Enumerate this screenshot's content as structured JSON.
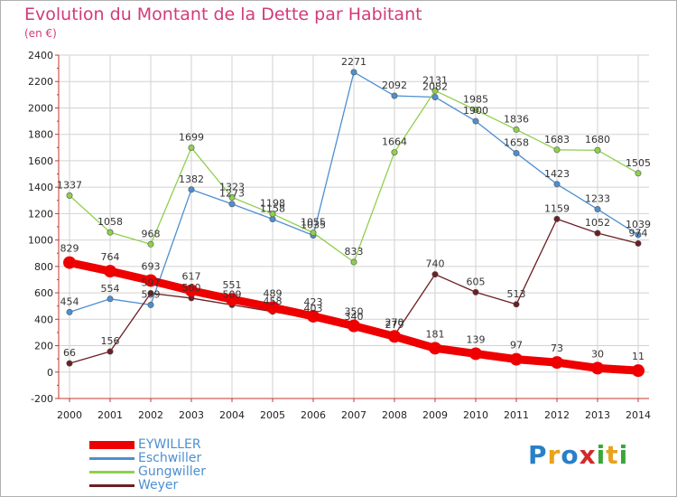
{
  "header": {
    "title": "Evolution du Montant de la Dette par Habitant",
    "subtitle": "(en €)"
  },
  "brand": {
    "text": "Proxiti",
    "letter_colors": [
      "#2a7fc8",
      "#e8a21c",
      "#2a7fc8",
      "#d22a2a",
      "#3aa63a",
      "#e8a21c",
      "#3aa63a"
    ]
  },
  "chart_data": {
    "type": "line",
    "title": "Evolution du Montant de la Dette par Habitant",
    "subtitle": "(en €)",
    "xlabel": "",
    "ylabel": "",
    "x": [
      "2000",
      "2001",
      "2002",
      "2003",
      "2004",
      "2005",
      "2006",
      "2007",
      "2008",
      "2009",
      "2010",
      "2011",
      "2012",
      "2013",
      "2014"
    ],
    "ylim": [
      -200,
      2400
    ],
    "yticks": [
      -200,
      0,
      200,
      400,
      600,
      800,
      1000,
      1200,
      1400,
      1600,
      1800,
      2000,
      2200,
      2400
    ],
    "grid": true,
    "legend_position": "bottom-left",
    "series": [
      {
        "name": "EYWILLER",
        "color": "#ee0000",
        "emphasis": true,
        "values": [
          829,
          764,
          693,
          617,
          551,
          489,
          423,
          350,
          270,
          181,
          139,
          97,
          73,
          30,
          11
        ]
      },
      {
        "name": "Eschwiller",
        "color": "#4d8fcf",
        "values": [
          454,
          554,
          509,
          1382,
          1273,
          1158,
          1035,
          2271,
          2092,
          2082,
          1900,
          1658,
          1423,
          1233,
          1039
        ]
      },
      {
        "name": "Gungwiller",
        "color": "#8fcf4d",
        "values": [
          1337,
          1058,
          968,
          1699,
          1323,
          1198,
          1055,
          833,
          1664,
          2131,
          1985,
          1836,
          1683,
          1680,
          1505
        ]
      },
      {
        "name": "Weyer",
        "color": "#6b1f24",
        "values": [
          66,
          156,
          597,
          560,
          509,
          458,
          403,
          340,
          279,
          740,
          605,
          513,
          1159,
          1052,
          974
        ]
      }
    ]
  }
}
